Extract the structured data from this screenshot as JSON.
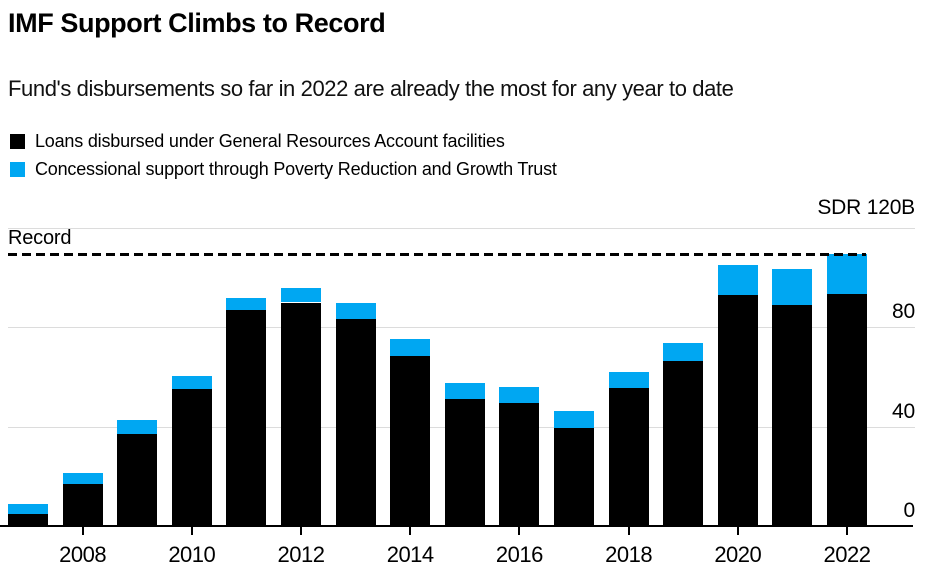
{
  "header": {
    "title": "IMF Support Climbs to Record",
    "subtitle": "Fund's disbursements so far in 2022 are already the most for any year to date"
  },
  "legend": {
    "items": [
      {
        "label": "Loans disbursed under General Resources Account facilities",
        "color": "#000000"
      },
      {
        "label": "Concessional support through Poverty Reduction and Growth Trust",
        "color": "#00a7f2"
      }
    ]
  },
  "chart_data": {
    "type": "bar",
    "stacked": true,
    "title": "IMF Support Climbs to Record",
    "subtitle": "Fund's disbursements so far in 2022 are already the most for any year to date",
    "unit": "SDR billions",
    "y_axis_top_label": "SDR 120B",
    "ylim": [
      0,
      120
    ],
    "y_ticks": [
      0,
      40,
      80
    ],
    "y_gridlines": [
      40,
      80,
      120
    ],
    "grid": true,
    "legend_position": "top-left",
    "categories": [
      2007,
      2008,
      2009,
      2010,
      2011,
      2012,
      2013,
      2014,
      2015,
      2016,
      2017,
      2018,
      2019,
      2020,
      2021,
      2022
    ],
    "x_tick_labels": [
      2008,
      2010,
      2012,
      2014,
      2016,
      2018,
      2020,
      2022
    ],
    "series": [
      {
        "name": "Loans disbursed under General Resources Account facilities",
        "color": "#000000",
        "values": [
          5,
          17,
          37,
          55,
          87,
          90,
          83.5,
          68.5,
          51,
          49.5,
          39.5,
          55.5,
          66.5,
          93,
          89,
          93.5
        ]
      },
      {
        "name": "Concessional support through Poverty Reduction and Growth Trust",
        "color": "#00a7f2",
        "values": [
          4,
          4.5,
          5.5,
          5.5,
          5,
          6,
          6.5,
          7,
          6.5,
          6.5,
          7,
          6.5,
          7,
          12,
          14.5,
          16
        ]
      }
    ],
    "annotations": [
      {
        "type": "dashed-line",
        "label": "Record",
        "value": 109.5
      }
    ]
  }
}
